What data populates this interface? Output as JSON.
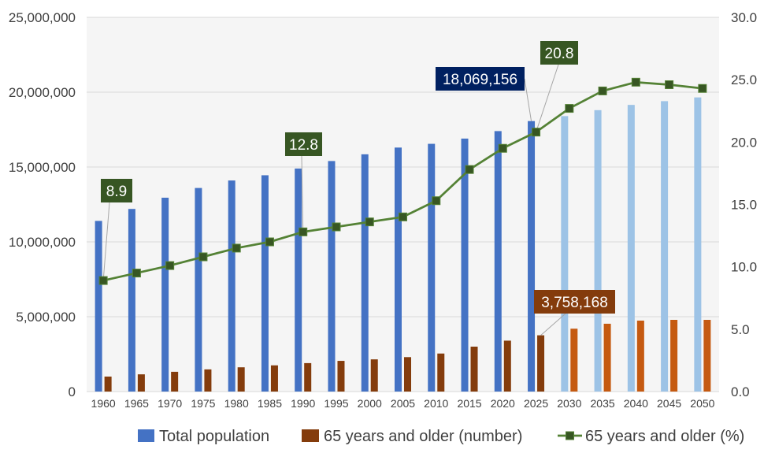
{
  "chart_data": {
    "type": "bar",
    "categories": [
      "1960",
      "1965",
      "1970",
      "1975",
      "1980",
      "1985",
      "1990",
      "1995",
      "2000",
      "2005",
      "2010",
      "2015",
      "2020",
      "2025",
      "2030",
      "2035",
      "2040",
      "2045",
      "2050"
    ],
    "y_axis_left": {
      "min": 0,
      "max": 25000000,
      "ticks": [
        0,
        5000000,
        10000000,
        15000000,
        20000000,
        25000000
      ],
      "tick_labels": [
        "0",
        "5,000,000",
        "10,000,000",
        "15,000,000",
        "20,000,000",
        "25,000,000"
      ]
    },
    "y_axis_right": {
      "min": 0,
      "max": 30,
      "ticks": [
        0,
        5,
        10,
        15,
        20,
        25,
        30
      ],
      "tick_labels": [
        "0.0",
        "5.0",
        "10.0",
        "15.0",
        "20.0",
        "25.0",
        "30.0"
      ]
    },
    "grid": true,
    "legend_position": "bottom",
    "series": [
      {
        "name": "Total population",
        "type": "bar",
        "axis": "left",
        "color": "#4472C4",
        "label_color": "#002060",
        "bar_colors": [
          "#4472C4",
          "#4472C4",
          "#4472C4",
          "#4472C4",
          "#4472C4",
          "#4472C4",
          "#4472C4",
          "#4472C4",
          "#4472C4",
          "#4472C4",
          "#4472C4",
          "#4472C4",
          "#4472C4",
          "#4472C4",
          "#9DC3E6",
          "#9DC3E6",
          "#9DC3E6",
          "#9DC3E6",
          "#9DC3E6"
        ],
        "values": [
          11400000,
          12200000,
          12950000,
          13600000,
          14100000,
          14450000,
          14900000,
          15400000,
          15850000,
          16300000,
          16550000,
          16900000,
          17400000,
          18069156,
          18400000,
          18800000,
          19150000,
          19400000,
          19650000
        ],
        "data_labels": [
          null,
          null,
          null,
          null,
          null,
          null,
          null,
          null,
          null,
          null,
          null,
          null,
          null,
          "18,069,156",
          null,
          null,
          null,
          null,
          null
        ]
      },
      {
        "name": "65 years and older (number)",
        "type": "bar",
        "axis": "left",
        "color": "#843C0C",
        "label_color": "#843C0C",
        "bar_colors": [
          "#843C0C",
          "#843C0C",
          "#843C0C",
          "#843C0C",
          "#843C0C",
          "#843C0C",
          "#843C0C",
          "#843C0C",
          "#843C0C",
          "#843C0C",
          "#843C0C",
          "#843C0C",
          "#843C0C",
          "#843C0C",
          "#C55A11",
          "#C55A11",
          "#C55A11",
          "#C55A11",
          "#C55A11"
        ],
        "values": [
          1000000,
          1150000,
          1320000,
          1480000,
          1620000,
          1750000,
          1900000,
          2050000,
          2150000,
          2300000,
          2540000,
          3000000,
          3400000,
          3758168,
          4200000,
          4530000,
          4740000,
          4790000,
          4790000
        ],
        "data_labels": [
          null,
          null,
          null,
          null,
          null,
          null,
          null,
          null,
          null,
          null,
          null,
          null,
          null,
          "3,758,168",
          null,
          null,
          null,
          null,
          null
        ]
      },
      {
        "name": "65 years and older (%)",
        "type": "line",
        "axis": "right",
        "color": "#548235",
        "marker": "square",
        "marker_color": "#375623",
        "label_color": "#375623",
        "values": [
          8.9,
          9.5,
          10.1,
          10.8,
          11.5,
          12.0,
          12.8,
          13.2,
          13.6,
          14.0,
          15.3,
          17.8,
          19.5,
          20.8,
          22.7,
          24.1,
          24.8,
          24.6,
          24.3
        ],
        "data_labels": [
          "8.9",
          null,
          null,
          null,
          null,
          null,
          "12.8",
          null,
          null,
          null,
          null,
          null,
          null,
          "20.8",
          null,
          null,
          null,
          null,
          null
        ]
      }
    ]
  }
}
